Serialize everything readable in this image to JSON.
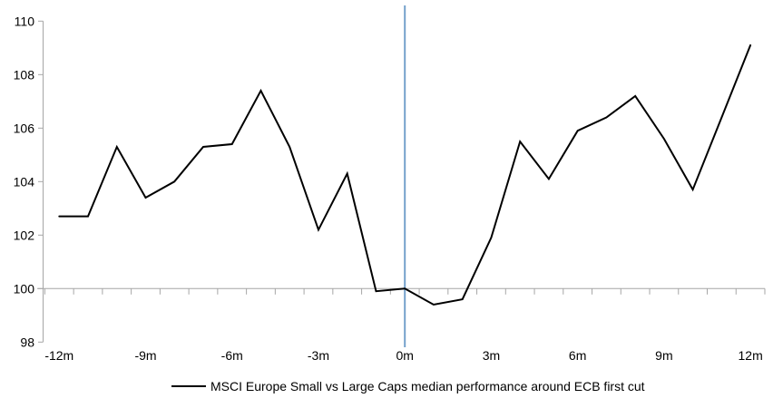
{
  "chart_data": {
    "type": "line",
    "title": "",
    "xlabel": "",
    "ylabel": "",
    "x": [
      -12,
      -11,
      -10,
      -9,
      -8,
      -7,
      -6,
      -5,
      -4,
      -3,
      -2,
      -1,
      0,
      1,
      2,
      3,
      4,
      5,
      6,
      7,
      8,
      9,
      10,
      11,
      12
    ],
    "series": [
      {
        "name": "MSCI Europe Small vs Large Caps median performance around ECB first cut",
        "values": [
          102.7,
          102.7,
          105.3,
          103.4,
          104.0,
          105.3,
          105.4,
          107.4,
          105.3,
          102.2,
          104.3,
          99.9,
          100.0,
          99.4,
          99.6,
          101.9,
          105.5,
          104.1,
          105.9,
          106.4,
          107.2,
          105.6,
          103.7,
          106.4,
          109.1
        ]
      }
    ],
    "x_tick_labels": [
      "-12m",
      "-9m",
      "-6m",
      "-3m",
      "0m",
      "3m",
      "6m",
      "9m",
      "12m"
    ],
    "x_tick_positions": [
      -12,
      -9,
      -6,
      -3,
      0,
      3,
      6,
      9,
      12
    ],
    "y_ticks": [
      98,
      100,
      102,
      104,
      106,
      108,
      110
    ],
    "ylim": [
      98,
      110
    ],
    "xlim": [
      -12.5,
      12.5
    ],
    "baseline_value": 100,
    "event_line_x": 0,
    "grid": "off",
    "legend_position": "bottom-center",
    "colors": {
      "series": "#000000",
      "event_line": "#74A1CB",
      "axis": "#A6A6A6",
      "text": "#000000",
      "background": "#FFFFFF"
    }
  },
  "legend": {
    "label": "MSCI Europe Small vs Large Caps median performance around ECB first cut"
  }
}
